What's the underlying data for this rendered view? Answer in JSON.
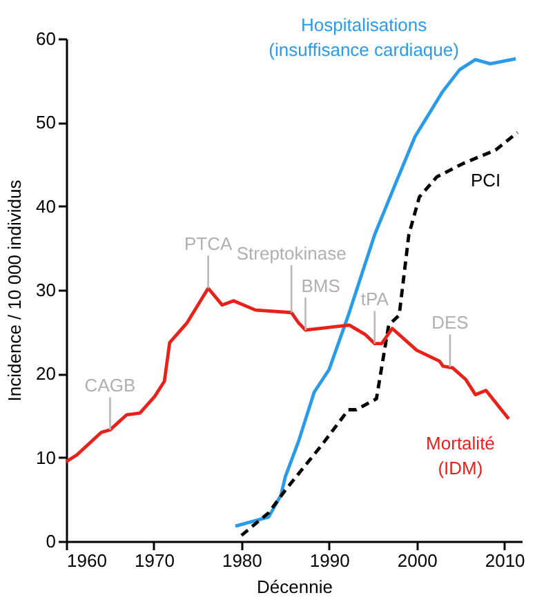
{
  "chart_data": {
    "type": "line",
    "xlabel": "Décennie",
    "ylabel": "Incidence / 10 000 individus",
    "xlim": [
      1960,
      2012
    ],
    "xticks": [
      1960,
      1970,
      1980,
      1990,
      2000,
      2010
    ],
    "ylim": [
      0,
      60
    ],
    "yticks": [
      0,
      10,
      20,
      30,
      40,
      50,
      60
    ],
    "grid": false,
    "legend": false,
    "line_style": "solid",
    "series": [
      {
        "name": "Hospitalisations (insuffisance cardiaque)",
        "color": "#2a9be8",
        "x": [
          1979.3,
          1983.1,
          1984.5,
          1985,
          1986.5,
          1988.3,
          1990,
          1992.2,
          1995.2,
          1997.7,
          1999.8,
          2002.9,
          2004.9,
          2006.7,
          2008.4,
          2011.3
        ],
        "values": [
          1.8,
          2.9,
          5.5,
          7.7,
          11.9,
          17.8,
          20.5,
          27,
          36.6,
          43,
          48.3,
          53.6,
          56.3,
          57.5,
          57,
          57.6
        ]
      },
      {
        "name": "PCI",
        "color": "#000000",
        "line_style": "dashed",
        "x": [
          1980,
          1983.1,
          1985,
          1989.1,
          1992.2,
          1993.1,
          1995.4,
          1996.8,
          1998,
          1999.1,
          2000.3,
          2002.3,
          2005.3,
          2009,
          2011.5
        ],
        "values": [
          0.7,
          3.4,
          6.1,
          11.4,
          15.7,
          15.7,
          17,
          25.8,
          27,
          36.6,
          41.1,
          43.5,
          45.1,
          46.7,
          48.8
        ]
      },
      {
        "name": "Mortalité (IDM)",
        "color": "#e8221b",
        "x": [
          1960,
          1961.2,
          1964,
          1965,
          1966.9,
          1968.4,
          1970.1,
          1971.2,
          1971.8,
          1973.8,
          1976.2,
          1977.8,
          1979.1,
          1981.6,
          1985.7,
          1986.5,
          1987.3,
          1992.3,
          1994.1,
          1995.2,
          1996,
          1997.2,
          2000,
          2002.6,
          2003,
          2004.1,
          2005.6,
          2006.7,
          2007.9,
          2010.5
        ],
        "values": [
          9.5,
          10.3,
          13,
          13.3,
          15.1,
          15.3,
          17.3,
          19.1,
          23.7,
          26.1,
          30.2,
          28.2,
          28.7,
          27.6,
          27.3,
          26.1,
          25.2,
          25.8,
          24.7,
          23.6,
          23.6,
          25.4,
          22.8,
          21.5,
          20.9,
          20.7,
          19.3,
          17.5,
          18,
          14.6
        ]
      }
    ],
    "annotations": [
      {
        "text": "CAGB",
        "x": 1965,
        "y": 13.3
      },
      {
        "text": "PTCA",
        "x": 1976.2,
        "y": 30.2
      },
      {
        "text": "Streptokinase",
        "x": 1985.7,
        "y": 27.3
      },
      {
        "text": "BMS",
        "x": 1987.3,
        "y": 25.2
      },
      {
        "text": "tPA",
        "x": 1995.2,
        "y": 23.6
      },
      {
        "text": "DES",
        "x": 2003.8,
        "y": 20.8
      }
    ]
  }
}
